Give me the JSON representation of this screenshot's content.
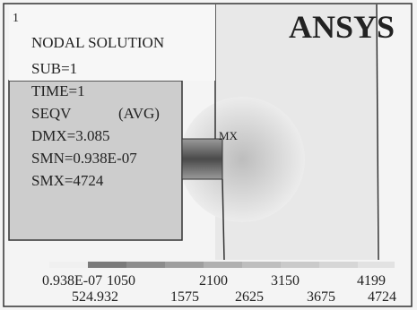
{
  "window_number": "1",
  "logo": "ANSYS",
  "info": {
    "title": "NODAL SOLUTION",
    "sub": "SUB=1",
    "time": "TIME=1",
    "result": "SEQV",
    "averaging": "(AVG)",
    "dmx": "DMX=3.085",
    "smn": "SMN=0.938E-07",
    "smx": "SMX=4724"
  },
  "max_marker": "MX",
  "legend": {
    "upper_labels": [
      "0.938E-07",
      "1050",
      "2100",
      "3150",
      "4199"
    ],
    "lower_labels": [
      "524.932",
      "1575",
      "2625",
      "3675",
      "4724"
    ]
  }
}
